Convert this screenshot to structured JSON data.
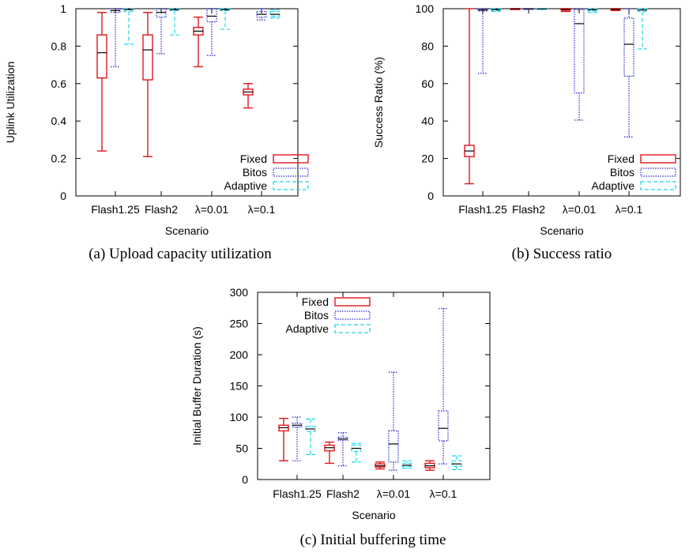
{
  "series_names": [
    "Fixed",
    "Bitos",
    "Adaptive"
  ],
  "series_colors": [
    "#e0161c",
    "#2a2ad6",
    "#19d6e8"
  ],
  "chart_data": [
    {
      "id": "a",
      "type": "box",
      "caption": "(a)  Upload capacity utilization",
      "xlabel": "Scenario",
      "ylabel": "Uplink Utilization",
      "categories": [
        "Flash1.25",
        "Flash2",
        "λ=0.01",
        "λ=0.1"
      ],
      "ylim": [
        0,
        1
      ],
      "yticks": [
        0,
        0.2,
        0.4,
        0.6,
        0.8,
        1
      ],
      "ytick_labels": [
        "0",
        "0.2",
        "0.4",
        "0.6",
        "0.8",
        "1"
      ],
      "legend": "bottom-right",
      "series": [
        {
          "name": "Fixed",
          "boxes": [
            {
              "min": 0.24,
              "q1": 0.63,
              "median": 0.765,
              "q3": 0.86,
              "max": 0.98
            },
            {
              "min": 0.21,
              "q1": 0.62,
              "median": 0.78,
              "q3": 0.86,
              "max": 0.98
            },
            {
              "min": 0.69,
              "q1": 0.86,
              "median": 0.88,
              "q3": 0.9,
              "max": 0.955
            },
            {
              "min": 0.47,
              "q1": 0.54,
              "median": 0.555,
              "q3": 0.57,
              "max": 0.6
            }
          ]
        },
        {
          "name": "Bitos",
          "boxes": [
            {
              "min": 0.69,
              "q1": 0.98,
              "median": 0.99,
              "q3": 1.0,
              "max": 1.0
            },
            {
              "min": 0.76,
              "q1": 0.955,
              "median": 0.98,
              "q3": 1.0,
              "max": 1.0
            },
            {
              "min": 0.75,
              "q1": 0.93,
              "median": 0.96,
              "q3": 1.0,
              "max": 1.0
            },
            {
              "min": 0.94,
              "q1": 0.955,
              "median": 0.97,
              "q3": 0.985,
              "max": 1.0
            }
          ]
        },
        {
          "name": "Adaptive",
          "boxes": [
            {
              "min": 0.81,
              "q1": 0.985,
              "median": 0.995,
              "q3": 1.0,
              "max": 1.0
            },
            {
              "min": 0.86,
              "q1": 0.99,
              "median": 0.995,
              "q3": 1.0,
              "max": 1.0
            },
            {
              "min": 0.89,
              "q1": 0.99,
              "median": 0.995,
              "q3": 1.0,
              "max": 1.0
            },
            {
              "min": 0.95,
              "q1": 0.96,
              "median": 0.97,
              "q3": 0.985,
              "max": 0.995
            }
          ]
        }
      ]
    },
    {
      "id": "b",
      "type": "box",
      "caption": "(b)  Success ratio",
      "xlabel": "Scenario",
      "ylabel": "Success Ratio (%)",
      "categories": [
        "Flash1.25",
        "Flash2",
        "λ=0.01",
        "λ=0.1"
      ],
      "ylim": [
        0,
        100
      ],
      "yticks": [
        0,
        20,
        40,
        60,
        80,
        100
      ],
      "ytick_labels": [
        "0",
        "20",
        "40",
        "60",
        "80",
        "100"
      ],
      "legend": "bottom-right",
      "series": [
        {
          "name": "Fixed",
          "boxes": [
            {
              "min": 6.5,
              "q1": 21,
              "median": 24,
              "q3": 27,
              "max": 100
            },
            {
              "min": 99.6,
              "q1": 99.8,
              "median": 99.9,
              "q3": 100,
              "max": 100
            },
            {
              "min": 98.5,
              "q1": 99.2,
              "median": 99.6,
              "q3": 100,
              "max": 100
            },
            {
              "min": 99.0,
              "q1": 99.4,
              "median": 99.7,
              "q3": 100,
              "max": 100
            }
          ]
        },
        {
          "name": "Bitos",
          "boxes": [
            {
              "min": 65.5,
              "q1": 98.8,
              "median": 99.3,
              "q3": 100,
              "max": 100
            },
            {
              "min": 99.6,
              "q1": 99.8,
              "median": 99.9,
              "q3": 100,
              "max": 100
            },
            {
              "min": 40.5,
              "q1": 55,
              "median": 92,
              "q3": 99.5,
              "max": 100
            },
            {
              "min": 31.5,
              "q1": 64,
              "median": 81,
              "q3": 95,
              "max": 100
            }
          ]
        },
        {
          "name": "Adaptive",
          "boxes": [
            {
              "min": 98.5,
              "q1": 99.0,
              "median": 99.5,
              "q3": 100,
              "max": 100
            },
            {
              "min": 99.6,
              "q1": 99.8,
              "median": 99.9,
              "q3": 100,
              "max": 100
            },
            {
              "min": 98.0,
              "q1": 98.8,
              "median": 99.4,
              "q3": 100,
              "max": 100
            },
            {
              "min": 78.5,
              "q1": 98.5,
              "median": 99.3,
              "q3": 100,
              "max": 100
            }
          ]
        }
      ]
    },
    {
      "id": "c",
      "type": "box",
      "caption": "(c)  Initial buffering time",
      "xlabel": "Scenario",
      "ylabel": "Initial Buffer Duration (s)",
      "categories": [
        "Flash1.25",
        "Flash2",
        "λ=0.01",
        "λ=0.1"
      ],
      "ylim": [
        0,
        300
      ],
      "yticks": [
        0,
        50,
        100,
        150,
        200,
        250,
        300
      ],
      "ytick_labels": [
        "0",
        "50",
        "100",
        "150",
        "200",
        "250",
        "300"
      ],
      "legend": "top-left",
      "series": [
        {
          "name": "Fixed",
          "boxes": [
            {
              "min": 30,
              "q1": 78,
              "median": 83,
              "q3": 87,
              "max": 98
            },
            {
              "min": 26,
              "q1": 46,
              "median": 51,
              "q3": 55,
              "max": 60
            },
            {
              "min": 17,
              "q1": 20,
              "median": 22,
              "q3": 25,
              "max": 28
            },
            {
              "min": 15,
              "q1": 19,
              "median": 22,
              "q3": 26,
              "max": 30
            }
          ]
        },
        {
          "name": "Bitos",
          "boxes": [
            {
              "min": 30,
              "q1": 84,
              "median": 87,
              "q3": 90,
              "max": 100
            },
            {
              "min": 22,
              "q1": 63,
              "median": 65,
              "q3": 68,
              "max": 75
            },
            {
              "min": 15,
              "q1": 28,
              "median": 57,
              "q3": 78,
              "max": 172
            },
            {
              "min": 25,
              "q1": 62,
              "median": 82,
              "q3": 110,
              "max": 274
            }
          ]
        },
        {
          "name": "Adaptive",
          "boxes": [
            {
              "min": 40,
              "q1": 77,
              "median": 81,
              "q3": 85,
              "max": 97
            },
            {
              "min": 28,
              "q1": 45,
              "median": 50,
              "q3": 55,
              "max": 58
            },
            {
              "min": 18,
              "q1": 21,
              "median": 23,
              "q3": 26,
              "max": 30
            },
            {
              "min": 16,
              "q1": 21,
              "median": 25,
              "q3": 30,
              "max": 38
            }
          ]
        }
      ]
    }
  ]
}
